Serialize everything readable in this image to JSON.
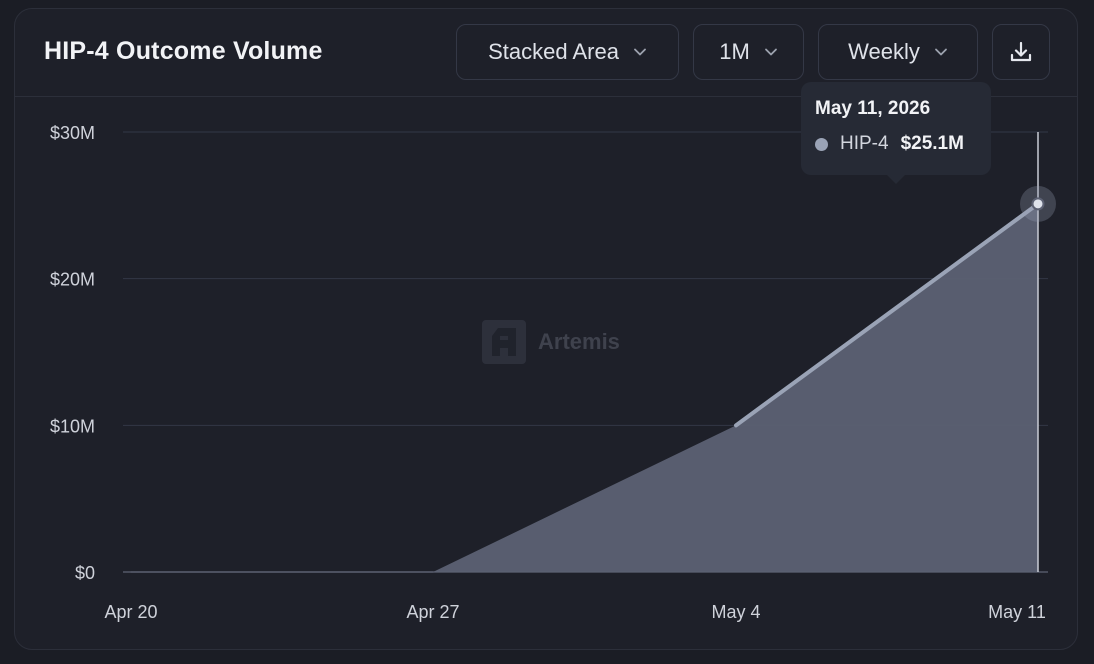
{
  "header": {
    "title": "HIP-4 Outcome Volume",
    "chart_type_label": "Stacked Area",
    "range_label": "1M",
    "frequency_label": "Weekly"
  },
  "watermark": "Artemis",
  "tooltip": {
    "date": "May 11, 2026",
    "series_name": "HIP-4",
    "value_label": "$25.1M"
  },
  "colors": {
    "background": "#1e2029",
    "series_line": "#9aa3b6",
    "series_fill": "#5c6173",
    "grid": "#333746"
  },
  "chart_data": {
    "type": "area",
    "title": "HIP-4 Outcome Volume",
    "stacked": true,
    "frequency": "Weekly",
    "x": [
      "Apr 20",
      "Apr 27",
      "May 4",
      "May 11"
    ],
    "x_tick_labels": [
      "Apr 20",
      "Apr 27",
      "May 4",
      "May 11"
    ],
    "series": [
      {
        "name": "HIP-4",
        "values": [
          0,
          0,
          10.0,
          25.1
        ]
      }
    ],
    "y_unit": "$M",
    "ylim": [
      0,
      30
    ],
    "y_ticks": [
      0,
      10,
      20,
      30
    ],
    "y_tick_labels": [
      "$0",
      "$10M",
      "$20M",
      "$30M"
    ],
    "grid": true,
    "highlight_index": 3
  }
}
